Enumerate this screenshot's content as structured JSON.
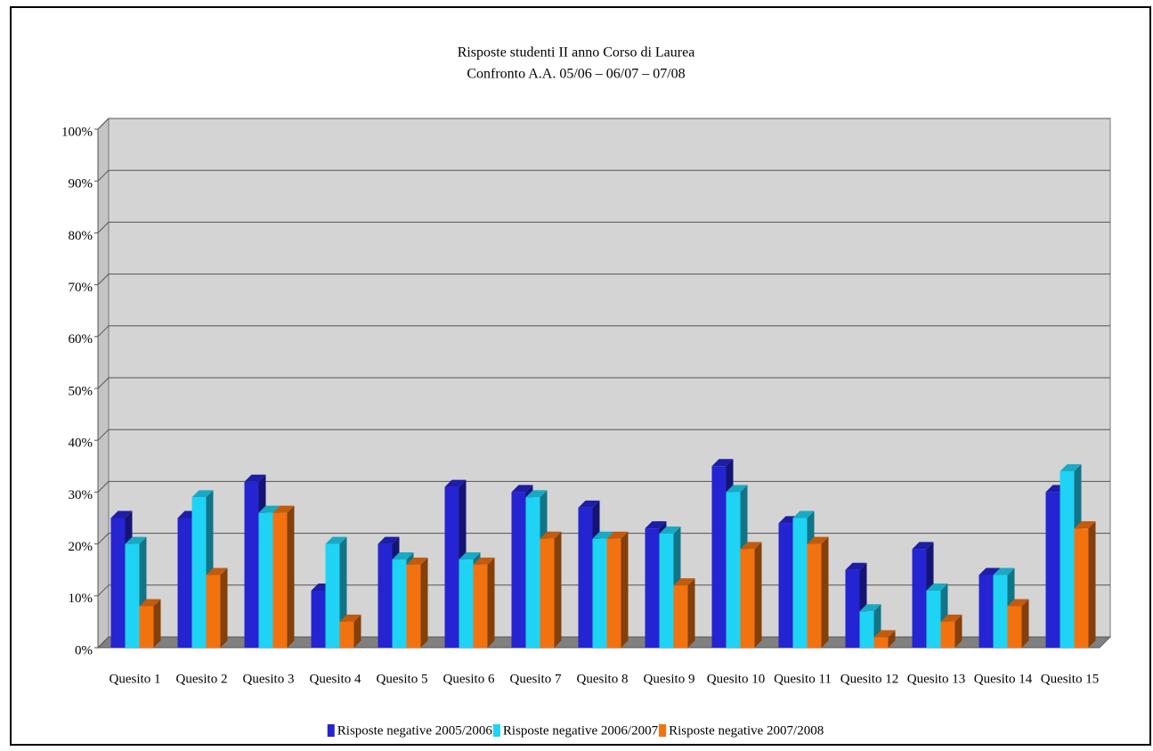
{
  "chart_data": {
    "type": "bar3d",
    "title": "Risposte studenti II anno Corso di Laurea",
    "subtitle": "Confronto A.A. 05/06 – 06/07 – 07/08",
    "categories": [
      "Quesito 1",
      "Quesito 2",
      "Quesito 3",
      "Quesito 4",
      "Quesito 5",
      "Quesito 6",
      "Quesito 7",
      "Quesito 8",
      "Quesito 9",
      "Quesito 10",
      "Quesito 11",
      "Quesito 12",
      "Quesito 13",
      "Quesito 14",
      "Quesito 15"
    ],
    "series": [
      {
        "name": "Risposte negative 2005/2006",
        "color": "#2424d2",
        "values": [
          25,
          25,
          32,
          11,
          20,
          31,
          30,
          27,
          23,
          35,
          24,
          15,
          19,
          14,
          30
        ]
      },
      {
        "name": "Risposte negative 2006/2007",
        "color": "#1fd3f5",
        "values": [
          20,
          29,
          26,
          20,
          17,
          17,
          29,
          21,
          22,
          30,
          25,
          7,
          11,
          14,
          34
        ]
      },
      {
        "name": "Risposte negative 2007/2008",
        "color": "#f27210",
        "values": [
          8,
          14,
          26,
          5,
          16,
          16,
          21,
          21,
          12,
          19,
          20,
          2,
          5,
          8,
          23
        ]
      }
    ],
    "ylim": [
      0,
      100
    ],
    "yticks": [
      {
        "value": 0,
        "label": "0%"
      },
      {
        "value": 10,
        "label": "10%"
      },
      {
        "value": 20,
        "label": "20%"
      },
      {
        "value": 30,
        "label": "30%"
      },
      {
        "value": 40,
        "label": "40%"
      },
      {
        "value": 50,
        "label": "50%"
      },
      {
        "value": 60,
        "label": "60%"
      },
      {
        "value": 70,
        "label": "70%"
      },
      {
        "value": 80,
        "label": "80%"
      },
      {
        "value": 90,
        "label": "90%"
      },
      {
        "value": 100,
        "label": "100%"
      }
    ],
    "grid": true,
    "legend": "bottom"
  }
}
